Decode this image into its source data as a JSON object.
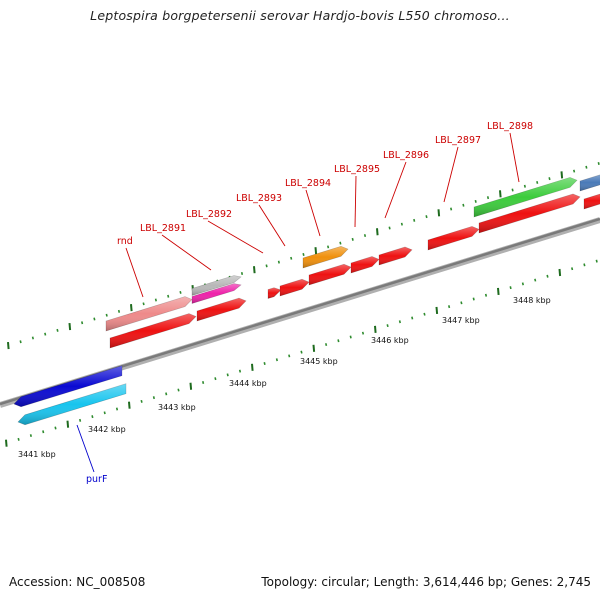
{
  "title": "Leptospira borgpetersenii serovar Hardjo-bovis L550 chromoso...",
  "footer": {
    "accession": "Accession: NC_008508",
    "summary": "Topology: circular; Length: 3,614,446 bp; Genes: 2,745"
  },
  "colors": {
    "axis": "#8a8a8a",
    "tick_major": "#1e6b1e",
    "tick_minor": "#2e8b2e",
    "label_red": "#cc0000",
    "label_blue": "#0000cc"
  },
  "kbp_labels": [
    "3441 kbp",
    "3442 kbp",
    "3443 kbp",
    "3444 kbp",
    "3445 kbp",
    "3446 kbp",
    "3447 kbp",
    "3448 kbp"
  ],
  "gene_labels": [
    {
      "text": "rnd",
      "color": "red"
    },
    {
      "text": "LBL_2891",
      "color": "red"
    },
    {
      "text": "LBL_2892",
      "color": "red"
    },
    {
      "text": "LBL_2893",
      "color": "red"
    },
    {
      "text": "LBL_2894",
      "color": "red"
    },
    {
      "text": "LBL_2895",
      "color": "red"
    },
    {
      "text": "LBL_2896",
      "color": "red"
    },
    {
      "text": "LBL_2897",
      "color": "red"
    },
    {
      "text": "LBL_2898",
      "color": "red"
    },
    {
      "text": "purF",
      "color": "blue"
    }
  ],
  "features": [
    {
      "name": "purF-cog",
      "color": "#0a0ad2",
      "strand": "reverse"
    },
    {
      "name": "purF-cds",
      "color": "#18c4ee",
      "strand": "reverse"
    },
    {
      "name": "rnd-cog",
      "color": "#ee8a8a",
      "strand": "forward"
    },
    {
      "name": "rnd-cds",
      "color": "#ee1111",
      "strand": "forward"
    },
    {
      "name": "LBL_2891-cog",
      "color": "#b8b8b8",
      "strand": "forward"
    },
    {
      "name": "LBL_2891-cog-2",
      "color": "#ee22aa",
      "strand": "forward"
    },
    {
      "name": "LBL_2891-cds",
      "color": "#ee1111",
      "strand": "forward"
    },
    {
      "name": "LBL_2892-cds",
      "color": "#ee1111",
      "strand": "forward"
    },
    {
      "name": "LBL_2893-cds",
      "color": "#ee1111",
      "strand": "forward"
    },
    {
      "name": "LBL_2894-cog",
      "color": "#f0900c",
      "strand": "forward"
    },
    {
      "name": "LBL_2894-cds",
      "color": "#ee1111",
      "strand": "forward"
    },
    {
      "name": "LBL_2895-cds",
      "color": "#ee1111",
      "strand": "forward"
    },
    {
      "name": "LBL_2896-cds",
      "color": "#ee1111",
      "strand": "forward"
    },
    {
      "name": "LBL_2897-cds",
      "color": "#ee1111",
      "strand": "forward"
    },
    {
      "name": "LBL_2898-cog",
      "color": "#3ccc3c",
      "strand": "forward"
    },
    {
      "name": "LBL_2898-cds",
      "color": "#ee1111",
      "strand": "forward"
    },
    {
      "name": "next-cog",
      "color": "#4a7ab8",
      "strand": "forward"
    },
    {
      "name": "next-cds",
      "color": "#ee1111",
      "strand": "forward"
    }
  ]
}
